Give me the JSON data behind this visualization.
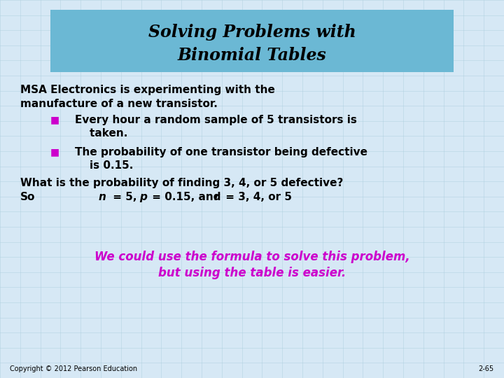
{
  "title_line1": "Solving Problems with",
  "title_line2": "Binomial Tables",
  "title_bg_color": "#6BB8D4",
  "title_text_color": "#000000",
  "bg_color": "#D6E8F5",
  "grid_color": "#AACCDD",
  "body_text_color": "#000000",
  "magenta_color": "#CC00CC",
  "bullet_color": "#CC00CC",
  "main_text_0": "MSA Electronics is experimenting with the",
  "main_text_1": "manufacture of a new transistor.",
  "bullet1_line1": "Every hour a random sample of 5 transistors is",
  "bullet1_line2": "    taken.",
  "bullet2_line1": "The probability of one transistor being defective",
  "bullet2_line2": "    is 0.15.",
  "question_line": "What is the probability of finding 3, 4, or 5 defective?",
  "magenta_line1": "We could use the formula to solve this problem,",
  "magenta_line2": "but using the table is easier.",
  "copyright": "Copyright © 2012 Pearson Education",
  "slide_number": "2-65",
  "font_size_title": 17,
  "font_size_body": 11,
  "font_size_magenta": 12,
  "font_size_copyright": 7
}
